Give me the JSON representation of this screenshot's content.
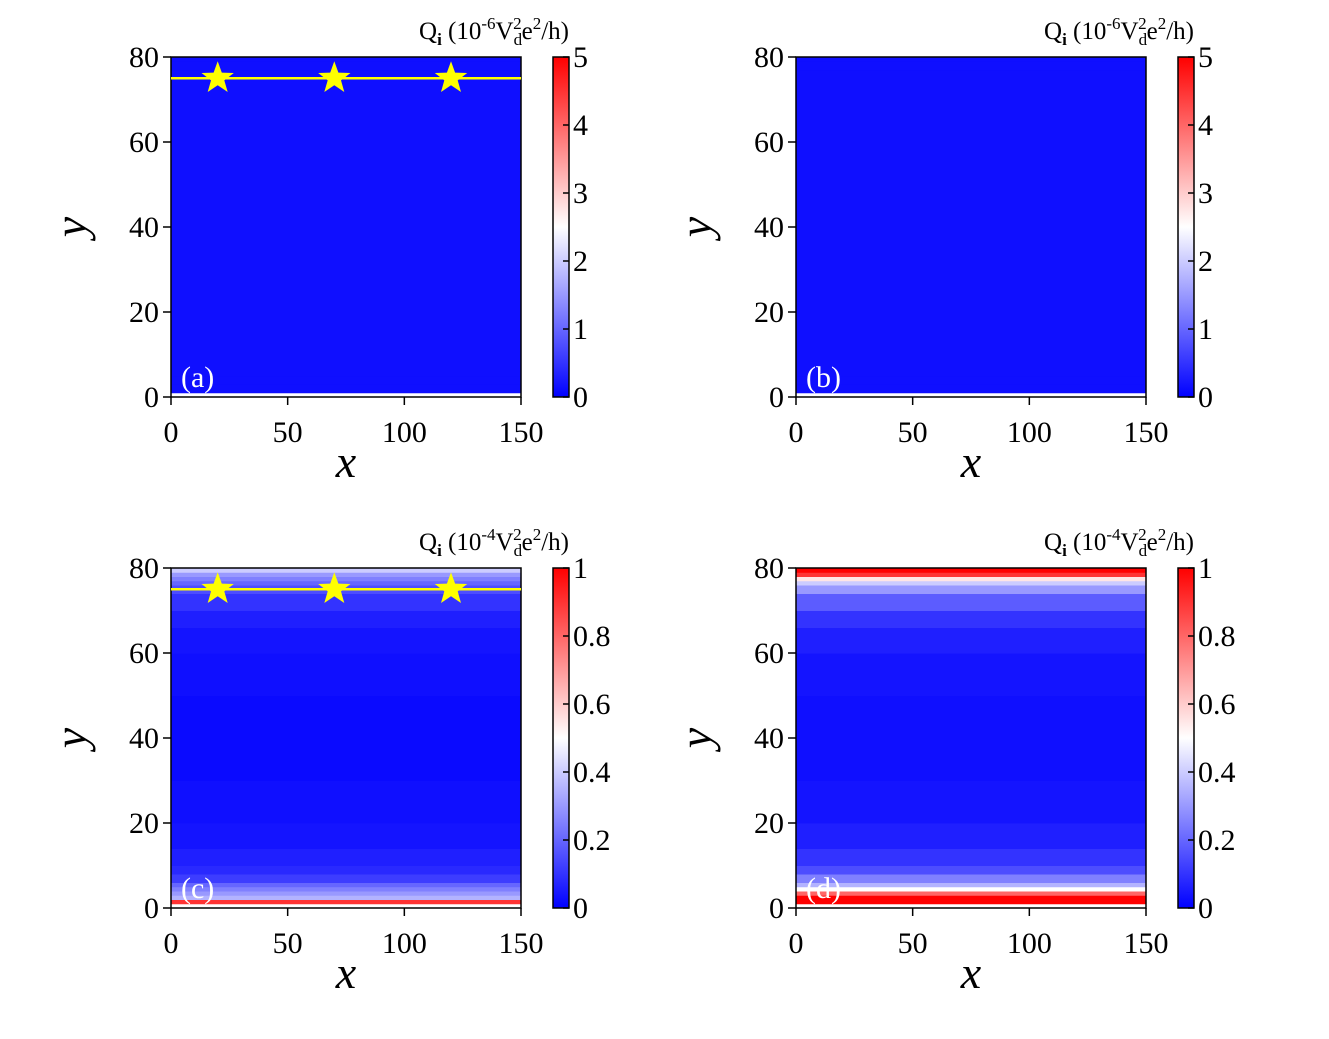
{
  "chart_data": [
    {
      "type": "heatmap",
      "panel_label": "(a)",
      "xlabel": "x",
      "ylabel": "y",
      "colorbar_label": [
        "Q",
        "i",
        " (10",
        "-6",
        "V",
        "d",
        "2",
        "e",
        "2",
        "/h)"
      ],
      "xlim": [
        0,
        150
      ],
      "xticks": [
        0,
        50,
        100,
        150
      ],
      "ylim": [
        0,
        80
      ],
      "yticks": [
        0,
        20,
        40,
        60,
        80
      ],
      "clim": [
        0,
        5
      ],
      "cticks": [
        0,
        1,
        2,
        3,
        4,
        5
      ],
      "colormap": [
        "#0000ff",
        "#ffffff",
        "#ff0000"
      ],
      "ybins": [
        1,
        2,
        3,
        4,
        5,
        6,
        8,
        10,
        14,
        20,
        30,
        50,
        60,
        66,
        70,
        74,
        76,
        77,
        78,
        79,
        80
      ],
      "values": [
        0.15,
        0.15,
        0.15,
        0.15,
        0.15,
        0.15,
        0.15,
        0.15,
        0.15,
        0.15,
        0.15,
        0.15,
        0.15,
        0.15,
        0.15,
        0.15,
        0.15,
        0.15,
        0.15,
        0.15
      ],
      "line_y": 75,
      "line_color": "#ffff00",
      "stars": {
        "x": [
          20,
          70,
          120
        ],
        "y": [
          75,
          75,
          75
        ],
        "color": "#ffff00"
      }
    },
    {
      "type": "heatmap",
      "panel_label": "(b)",
      "xlabel": "x",
      "ylabel": "y",
      "colorbar_label": [
        "Q",
        "i",
        " (10",
        "-6",
        "V",
        "d",
        "2",
        "e",
        "2",
        "/h)"
      ],
      "xlim": [
        0,
        150
      ],
      "xticks": [
        0,
        50,
        100,
        150
      ],
      "ylim": [
        0,
        80
      ],
      "yticks": [
        0,
        20,
        40,
        60,
        80
      ],
      "clim": [
        0,
        5
      ],
      "cticks": [
        0,
        1,
        2,
        3,
        4,
        5
      ],
      "colormap": [
        "#0000ff",
        "#ffffff",
        "#ff0000"
      ],
      "ybins": [
        1,
        2,
        3,
        4,
        5,
        6,
        8,
        10,
        14,
        20,
        30,
        50,
        60,
        66,
        70,
        74,
        76,
        77,
        78,
        79,
        80
      ],
      "values": [
        0.15,
        0.15,
        0.15,
        0.15,
        0.15,
        0.15,
        0.15,
        0.15,
        0.15,
        0.15,
        0.15,
        0.15,
        0.15,
        0.15,
        0.15,
        0.15,
        0.15,
        0.15,
        0.15,
        0.15
      ]
    },
    {
      "type": "heatmap",
      "panel_label": "(c)",
      "xlabel": "x",
      "ylabel": "y",
      "colorbar_label": [
        "Q",
        "i",
        " (10",
        "-4",
        "V",
        "d",
        "2",
        "e",
        "2",
        "/h)"
      ],
      "xlim": [
        0,
        150
      ],
      "xticks": [
        0,
        50,
        100,
        150
      ],
      "ylim": [
        0,
        80
      ],
      "yticks": [
        0,
        20,
        40,
        60,
        80
      ],
      "clim": [
        0,
        1
      ],
      "cticks": [
        0,
        0.2,
        0.4,
        0.6,
        0.8,
        1
      ],
      "colormap": [
        "#0000ff",
        "#ffffff",
        "#ff0000"
      ],
      "ybins": [
        1,
        2,
        3,
        4,
        5,
        6,
        8,
        10,
        14,
        20,
        30,
        50,
        60,
        66,
        70,
        74,
        76,
        77,
        78,
        79,
        80
      ],
      "values": [
        0.9,
        0.35,
        0.3,
        0.25,
        0.2,
        0.12,
        0.08,
        0.06,
        0.04,
        0.03,
        0.02,
        0.03,
        0.04,
        0.06,
        0.1,
        0.15,
        0.2,
        0.25,
        0.3,
        0.4
      ],
      "line_y": 75,
      "line_color": "#ffff00",
      "stars": {
        "x": [
          20,
          70,
          120
        ],
        "y": [
          75,
          75,
          75
        ],
        "color": "#ffff00"
      }
    },
    {
      "type": "heatmap",
      "panel_label": "(d)",
      "xlabel": "x",
      "ylabel": "y",
      "colorbar_label": [
        "Q",
        "i",
        " (10",
        "-4",
        "V",
        "d",
        "2",
        "e",
        "2",
        "/h)"
      ],
      "xlim": [
        0,
        150
      ],
      "xticks": [
        0,
        50,
        100,
        150
      ],
      "ylim": [
        0,
        80
      ],
      "yticks": [
        0,
        20,
        40,
        60,
        80
      ],
      "clim": [
        0,
        1
      ],
      "cticks": [
        0,
        0.2,
        0.4,
        0.6,
        0.8,
        1
      ],
      "colormap": [
        "#0000ff",
        "#ffffff",
        "#ff0000"
      ],
      "ybins": [
        1,
        2,
        3,
        4,
        5,
        6,
        8,
        10,
        14,
        20,
        30,
        50,
        60,
        66,
        70,
        74,
        76,
        77,
        78,
        79,
        80
      ],
      "values": [
        1,
        1,
        0.8,
        0.5,
        0.35,
        0.25,
        0.15,
        0.1,
        0.06,
        0.04,
        0.03,
        0.04,
        0.06,
        0.1,
        0.18,
        0.3,
        0.4,
        0.55,
        0.9,
        1
      ]
    }
  ]
}
